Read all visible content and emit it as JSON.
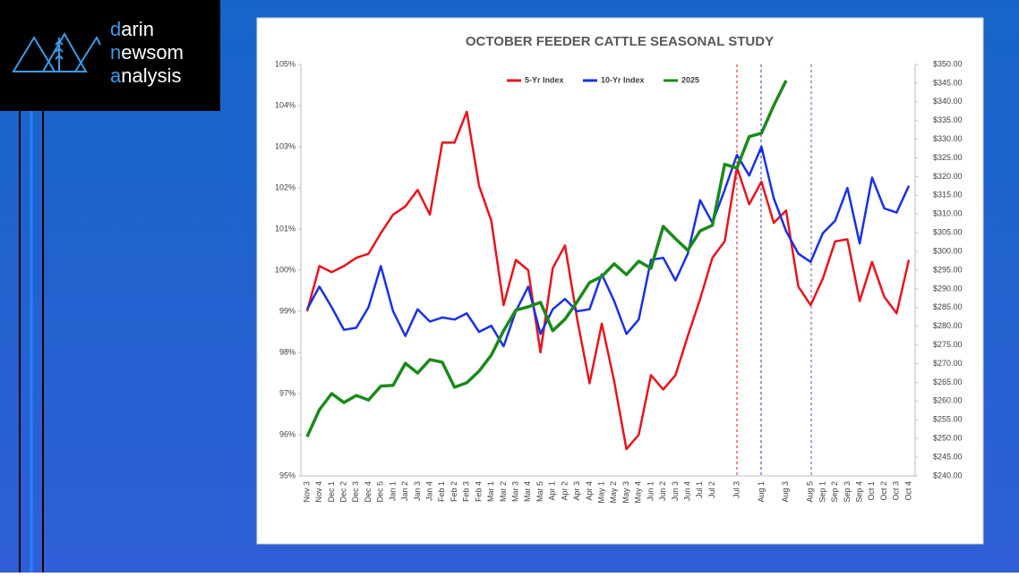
{
  "logo": {
    "lines": [
      "darin",
      "newsom",
      "analysis"
    ]
  },
  "chart_data": {
    "type": "line",
    "title": "OCTOBER FEEDER CATTLE SEASONAL STUDY",
    "categories": [
      "Nov 3",
      "Nov 4",
      "Dec 1",
      "Dec 2",
      "Dec 3",
      "Dec 4",
      "Dec 5",
      "Jan 1",
      "Jan 2",
      "Jan 3",
      "Jan 4",
      "Feb 1",
      "Feb 2",
      "Feb 3",
      "Feb 4",
      "Mar 1",
      "Mar 2",
      "Mar 3",
      "Mar 4",
      "Mar 5",
      "Apr 1",
      "Apr 2",
      "Apr 3",
      "Apr 4",
      "May 1",
      "May 2",
      "May 3",
      "May 4",
      "Jun 1",
      "Jun 2",
      "Jun 3",
      "Jun 4",
      "Jul 1",
      "Jul 2",
      null,
      "Jul 3",
      null,
      "Aug 1",
      null,
      "Aug 3",
      null,
      "Aug 5",
      "Sep 1",
      "Sep 2",
      "Sep 3",
      "Sep 4",
      "Oct 1",
      "Oct 2",
      "Oct 3",
      "Oct 4"
    ],
    "series": [
      {
        "name": "5-Yr Index",
        "color": "#e8141c",
        "values": [
          99.0,
          100.1,
          99.95,
          100.1,
          100.3,
          100.4,
          100.9,
          101.35,
          101.55,
          101.95,
          101.35,
          103.1,
          103.1,
          103.85,
          102.05,
          101.2,
          99.15,
          100.25,
          100.0,
          98.0,
          100.05,
          100.6,
          98.8,
          97.25,
          98.7,
          97.3,
          95.65,
          96.0,
          97.45,
          97.1,
          97.45,
          98.4,
          99.3,
          100.3,
          100.7,
          102.5,
          101.6,
          102.15,
          101.15,
          101.45,
          99.6,
          99.15,
          99.8,
          100.7,
          100.75,
          99.25,
          100.2,
          99.35,
          98.95,
          100.25
        ]
      },
      {
        "name": "10-Yr Index",
        "color": "#1a30e6",
        "values": [
          99.05,
          99.6,
          99.1,
          98.55,
          98.6,
          99.1,
          100.1,
          99.0,
          98.4,
          99.05,
          98.75,
          98.85,
          98.8,
          98.95,
          98.5,
          98.65,
          98.15,
          99.0,
          99.6,
          98.45,
          99.05,
          99.3,
          99.0,
          99.05,
          99.9,
          99.25,
          98.45,
          98.8,
          100.25,
          100.3,
          99.75,
          100.4,
          101.7,
          101.15,
          101.95,
          102.8,
          102.3,
          103.0,
          101.75,
          100.95,
          100.4,
          100.2,
          100.9,
          101.2,
          102.0,
          100.65,
          102.25,
          101.5,
          101.4,
          102.05
        ]
      },
      {
        "name": "2025",
        "color": "#1b8a1b",
        "axis": "y2",
        "values": [
          250.5,
          257.7,
          262,
          259.6,
          261.5,
          260.3,
          264,
          264.2,
          270.1,
          267.5,
          271.1,
          270.4,
          263.7,
          264.9,
          268,
          272.3,
          278.8,
          284.3,
          285.2,
          286.4,
          278.8,
          281.9,
          286.6,
          291.7,
          293.3,
          296.7,
          293.8,
          297.4,
          295.5,
          306.7,
          303.4,
          300.3,
          305.5,
          307,
          323.3,
          322.3,
          330.7,
          331.6,
          339,
          345.7,
          null,
          null,
          null,
          null,
          null,
          null,
          null,
          null,
          null,
          null
        ]
      }
    ],
    "ylim": [
      95,
      105
    ],
    "yticks": [
      {
        "value": 95,
        "label": "95%"
      },
      {
        "value": 96,
        "label": "96%"
      },
      {
        "value": 97,
        "label": "97%"
      },
      {
        "value": 98,
        "label": "98%"
      },
      {
        "value": 99,
        "label": "99%"
      },
      {
        "value": 100,
        "label": "100%"
      },
      {
        "value": 101,
        "label": "101%"
      },
      {
        "value": 102,
        "label": "102%"
      },
      {
        "value": 103,
        "label": "103%"
      },
      {
        "value": 104,
        "label": "104%"
      },
      {
        "value": 105,
        "label": "105%"
      }
    ],
    "y2lim": [
      240,
      350
    ],
    "y2ticks": [
      {
        "value": 240,
        "label": "$240.00"
      },
      {
        "value": 245,
        "label": "$245.00"
      },
      {
        "value": 250,
        "label": "$250.00"
      },
      {
        "value": 255,
        "label": "$255.00"
      },
      {
        "value": 260,
        "label": "$260.00"
      },
      {
        "value": 265,
        "label": "$265.00"
      },
      {
        "value": 270,
        "label": "$270.00"
      },
      {
        "value": 275,
        "label": "$275.00"
      },
      {
        "value": 280,
        "label": "$280.00"
      },
      {
        "value": 285,
        "label": "$285.00"
      },
      {
        "value": 290,
        "label": "$290.00"
      },
      {
        "value": 295,
        "label": "$295.00"
      },
      {
        "value": 300,
        "label": "$300.00"
      },
      {
        "value": 305,
        "label": "$305.00"
      },
      {
        "value": 310,
        "label": "$310.00"
      },
      {
        "value": 315,
        "label": "$315.00"
      },
      {
        "value": 320,
        "label": "$320.00"
      },
      {
        "value": 325,
        "label": "$325.00"
      },
      {
        "value": 330,
        "label": "$330.00"
      },
      {
        "value": 335,
        "label": "$335.00"
      },
      {
        "value": 340,
        "label": "$340.00"
      },
      {
        "value": 345,
        "label": "$345.00"
      },
      {
        "value": 350,
        "label": "$350.00"
      }
    ],
    "grid": false,
    "legend": "top"
  }
}
